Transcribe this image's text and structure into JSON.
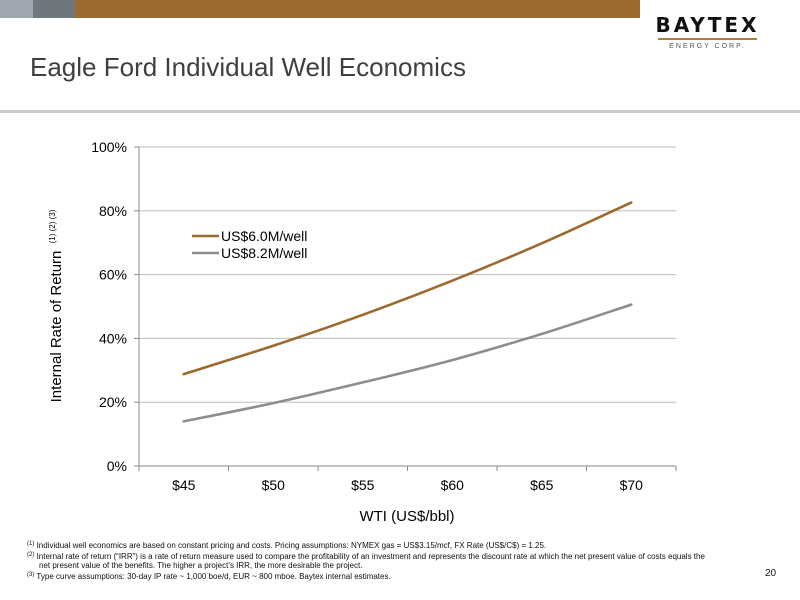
{
  "slide": {
    "title": "Eagle Ford Individual Well Economics",
    "logo_name": "BAYTEX",
    "logo_sub": "ENERGY CORP.",
    "page_number": "20"
  },
  "chart_data": {
    "type": "line",
    "xlabel": "WTI (US$/bbl)",
    "ylabel": "Internal Rate of Return",
    "ylabel_superscripts": "(1) (2) (3)",
    "categories": [
      "$45",
      "$50",
      "$55",
      "$60",
      "$65",
      "$70"
    ],
    "x": [
      45,
      50,
      55,
      60,
      65,
      70
    ],
    "y_ticks": [
      "0%",
      "20%",
      "40%",
      "60%",
      "80%",
      "100%"
    ],
    "ylim": [
      0,
      100
    ],
    "grid": true,
    "legend": "upper-left inside plot",
    "series": [
      {
        "name": "US$6.0M/well",
        "color": "#9b6a2f",
        "values": [
          28.8,
          37.7,
          47.4,
          58.1,
          69.8,
          82.6
        ]
      },
      {
        "name": "US$8.2M/well",
        "color": "#8c8e8a",
        "values": [
          14.0,
          19.7,
          26.2,
          33.2,
          41.4,
          50.6
        ]
      }
    ]
  },
  "footnotes": [
    {
      "marker": "(1)",
      "text": "Individual well economics are based on constant pricing and costs. Pricing assumptions: NYMEX gas = US$3.15/mcf, FX Rate (US$/C$) = 1.25."
    },
    {
      "marker": "(2)",
      "text": "Internal rate of return (“IRR”) is a rate of return measure used to compare the profitability of an investment and represents the discount rate at which the net present value of costs equals the",
      "continuation": "net present value of the benefits. The higher a project’s IRR, the more desirable the project."
    },
    {
      "marker": "(3)",
      "text": "Type curve assumptions: 30-day IP rate ~ 1,000 boe/d, EUR ~ 800 mboe. Baytex internal estimates."
    }
  ]
}
